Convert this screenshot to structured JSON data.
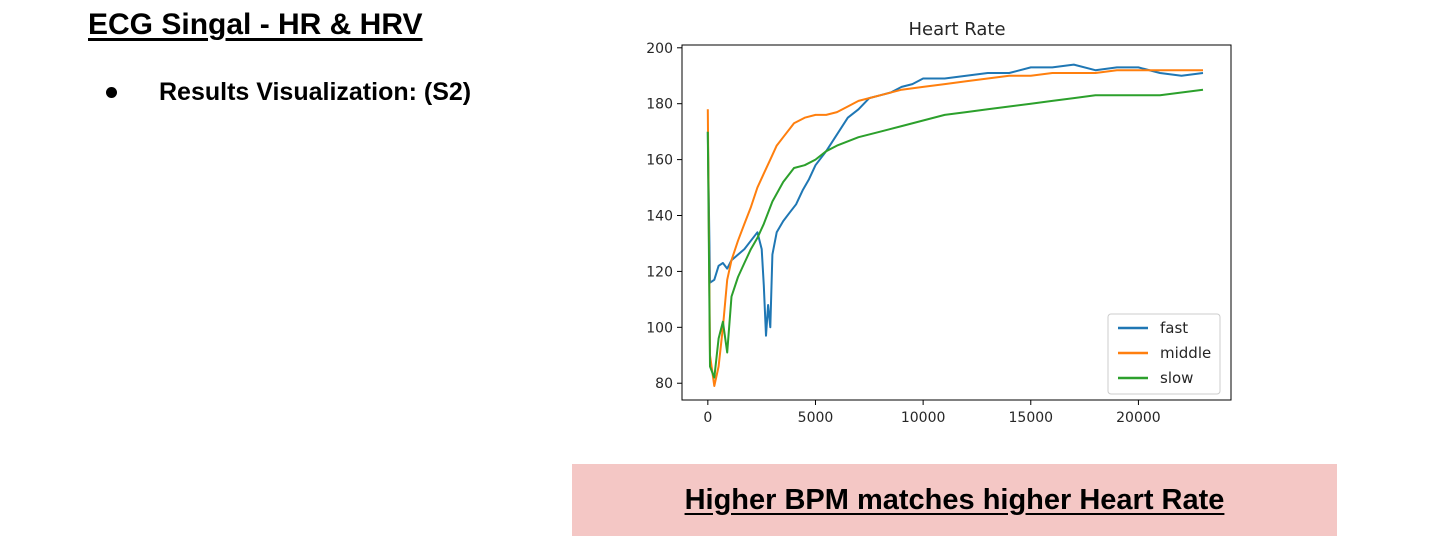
{
  "slide": {
    "title": "ECG Singal - HR & HRV",
    "bullet": "Results Visualization: (S2)",
    "callout": "Higher BPM matches higher Heart Rate"
  },
  "colors": {
    "callout_bg": "#f4c7c5",
    "fast": "#1f77b4",
    "middle": "#ff7f0e",
    "slow": "#2ca02c"
  },
  "chart_data": {
    "type": "line",
    "title": "Heart Rate",
    "xlabel": "",
    "ylabel": "",
    "xlim": [
      -1200,
      24300
    ],
    "ylim": [
      74,
      201
    ],
    "xticks": [
      0,
      5000,
      10000,
      15000,
      20000
    ],
    "yticks": [
      80,
      100,
      120,
      140,
      160,
      180,
      200
    ],
    "legend_position": "lower-right",
    "grid": false,
    "series": [
      {
        "name": "fast",
        "x": [
          0,
          100,
          300,
          500,
          700,
          900,
          1100,
          1400,
          1700,
          2000,
          2300,
          2500,
          2600,
          2700,
          2800,
          2900,
          3000,
          3200,
          3500,
          3800,
          4100,
          4400,
          4700,
          5000,
          5500,
          6000,
          6500,
          7000,
          7500,
          8000,
          8500,
          9000,
          9500,
          10000,
          11000,
          12000,
          13000,
          14000,
          15000,
          16000,
          17000,
          18000,
          19000,
          20000,
          21000,
          22000,
          23000
        ],
        "y": [
          170,
          116,
          117,
          122,
          123,
          121,
          124,
          126,
          128,
          131,
          134,
          128,
          115,
          97,
          108,
          100,
          126,
          134,
          138,
          141,
          144,
          149,
          153,
          158,
          163,
          169,
          175,
          178,
          182,
          183,
          184,
          186,
          187,
          189,
          189,
          190,
          191,
          191,
          193,
          193,
          194,
          192,
          193,
          193,
          191,
          190,
          191
        ]
      },
      {
        "name": "middle",
        "x": [
          0,
          100,
          300,
          500,
          700,
          900,
          1100,
          1400,
          1700,
          2000,
          2300,
          2600,
          2900,
          3200,
          3500,
          4000,
          4500,
          5000,
          5500,
          6000,
          6500,
          7000,
          8000,
          9000,
          10000,
          11000,
          12000,
          13000,
          14000,
          15000,
          16000,
          17000,
          18000,
          19000,
          20000,
          21000,
          22000,
          23000
        ],
        "y": [
          178,
          90,
          79,
          86,
          100,
          117,
          124,
          131,
          137,
          143,
          150,
          155,
          160,
          165,
          168,
          173,
          175,
          176,
          176,
          177,
          179,
          181,
          183,
          185,
          186,
          187,
          188,
          189,
          190,
          190,
          191,
          191,
          191,
          192,
          192,
          192,
          192,
          192
        ]
      },
      {
        "name": "slow",
        "x": [
          0,
          100,
          300,
          500,
          700,
          900,
          1100,
          1400,
          1700,
          2000,
          2300,
          2600,
          3000,
          3500,
          4000,
          4500,
          5000,
          5500,
          6000,
          7000,
          8000,
          9000,
          10000,
          11000,
          12000,
          13000,
          14000,
          15000,
          16000,
          17000,
          18000,
          19000,
          20000,
          21000,
          22000,
          23000
        ],
        "y": [
          170,
          86,
          82,
          96,
          102,
          91,
          111,
          118,
          123,
          128,
          132,
          137,
          145,
          152,
          157,
          158,
          160,
          163,
          165,
          168,
          170,
          172,
          174,
          176,
          177,
          178,
          179,
          180,
          181,
          182,
          183,
          183,
          183,
          183,
          184,
          185
        ]
      }
    ]
  }
}
